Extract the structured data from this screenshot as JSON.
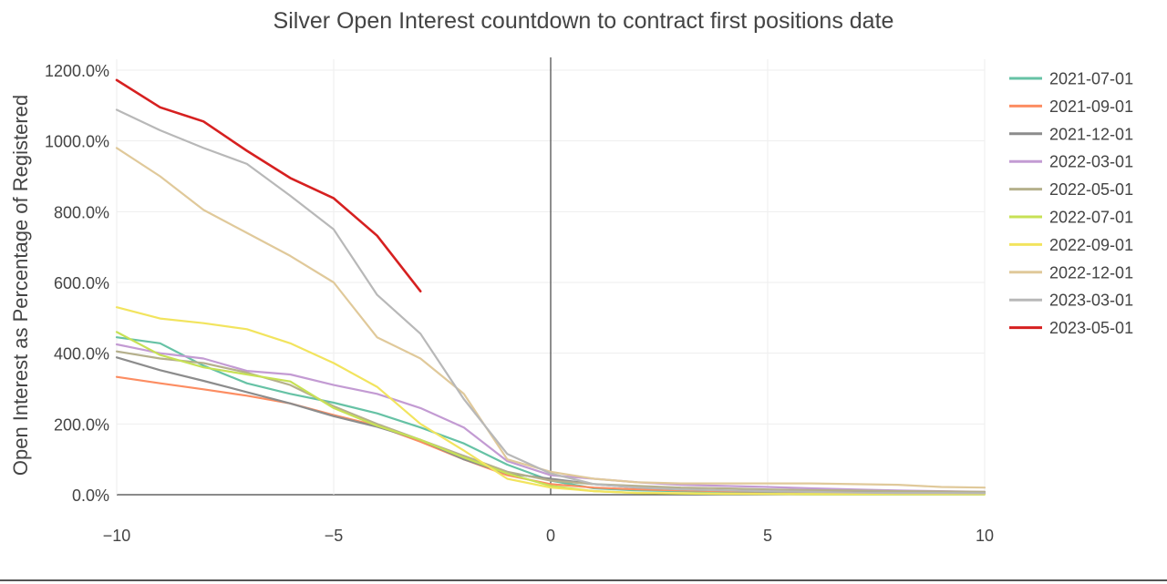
{
  "chart_data": {
    "type": "line",
    "title": "Silver Open Interest countdown to contract first positions date",
    "xlabel": "",
    "ylabel": "Open Interest as Percentage of Registered",
    "xlim": [
      -10,
      10
    ],
    "ylim": [
      0,
      1200
    ],
    "x_ticks": [
      -10,
      -5,
      0,
      5,
      10
    ],
    "x_tick_labels": [
      "−10",
      "−5",
      "0",
      "5",
      "10"
    ],
    "y_ticks": [
      0,
      200,
      400,
      600,
      800,
      1000,
      1200
    ],
    "y_tick_labels": [
      "0.0%",
      "200.0%",
      "400.0%",
      "600.0%",
      "800.0%",
      "1000.0%",
      "1200.0%"
    ],
    "grid": true,
    "zero_line_x": 0,
    "legend_position": "right",
    "series": [
      {
        "name": "2021-07-01",
        "color": "#66c2a5",
        "x": [
          -10,
          -9,
          -8,
          -7,
          -6,
          -5,
          -4,
          -3,
          -2,
          -1,
          0,
          1,
          2,
          3,
          4,
          5,
          6,
          7,
          8,
          9,
          10
        ],
        "y": [
          445,
          428,
          365,
          315,
          285,
          260,
          230,
          190,
          145,
          85,
          40,
          18,
          12,
          10,
          8,
          7,
          6,
          6,
          5,
          5,
          5
        ]
      },
      {
        "name": "2021-09-01",
        "color": "#fc8d62",
        "x": [
          -10,
          -9,
          -8,
          -7,
          -6,
          -5,
          -4,
          -3,
          -2,
          -1,
          0,
          1,
          2,
          3,
          4,
          5,
          6,
          7,
          8,
          9,
          10
        ],
        "y": [
          333,
          315,
          298,
          280,
          258,
          225,
          195,
          150,
          100,
          55,
          30,
          20,
          15,
          12,
          10,
          9,
          8,
          8,
          7,
          7,
          7
        ]
      },
      {
        "name": "2021-12-01",
        "color": "#8c8c8c",
        "x": [
          -10,
          -9,
          -8,
          -7,
          -6,
          -5,
          -4,
          -3,
          -2,
          -1,
          0,
          1,
          2,
          3,
          4,
          5,
          6,
          7,
          8,
          9,
          10
        ],
        "y": [
          388,
          352,
          322,
          290,
          258,
          222,
          192,
          155,
          100,
          60,
          45,
          30,
          20,
          15,
          12,
          10,
          8,
          7,
          6,
          5,
          5
        ]
      },
      {
        "name": "2022-03-01",
        "color": "#c39bd3",
        "x": [
          -10,
          -9,
          -8,
          -7,
          -6,
          -5,
          -4,
          -3,
          -2,
          -1,
          0,
          1,
          2,
          3,
          4,
          5,
          6,
          7,
          8,
          9,
          10
        ],
        "y": [
          425,
          400,
          385,
          350,
          340,
          310,
          285,
          245,
          190,
          95,
          55,
          45,
          35,
          28,
          25,
          22,
          18,
          15,
          12,
          10,
          8
        ]
      },
      {
        "name": "2022-05-01",
        "color": "#b5b08c",
        "x": [
          -10,
          -9,
          -8,
          -7,
          -6,
          -5,
          -4,
          -3,
          -2,
          -1,
          0,
          1,
          2,
          3,
          4,
          5,
          6,
          7,
          8,
          9,
          10
        ],
        "y": [
          405,
          385,
          372,
          345,
          310,
          250,
          200,
          155,
          110,
          65,
          40,
          30,
          25,
          20,
          18,
          15,
          13,
          12,
          10,
          9,
          8
        ]
      },
      {
        "name": "2022-07-01",
        "color": "#c7e155",
        "x": [
          -10,
          -9,
          -8,
          -7,
          -6,
          -5,
          -4,
          -3,
          -2,
          -1,
          0,
          1,
          2,
          3,
          4,
          5,
          6,
          7,
          8,
          9,
          10
        ],
        "y": [
          460,
          395,
          360,
          340,
          320,
          245,
          195,
          155,
          105,
          60,
          25,
          10,
          5,
          3,
          2,
          2,
          1,
          1,
          1,
          1,
          1
        ]
      },
      {
        "name": "2022-09-01",
        "color": "#f2e45e",
        "x": [
          -10,
          -9,
          -8,
          -7,
          -6,
          -5,
          -4,
          -3,
          -2,
          -1,
          0,
          1,
          2,
          3,
          4,
          5,
          6,
          7,
          8,
          9,
          10
        ],
        "y": [
          530,
          498,
          485,
          468,
          428,
          372,
          305,
          200,
          125,
          45,
          20,
          10,
          5,
          4,
          3,
          2,
          2,
          2,
          2,
          2,
          2
        ]
      },
      {
        "name": "2022-12-01",
        "color": "#e0c99a",
        "x": [
          -10,
          -9,
          -8,
          -7,
          -6,
          -5,
          -4,
          -3,
          -2,
          -1,
          0,
          1,
          2,
          3,
          4,
          5,
          6,
          7,
          8,
          9,
          10
        ],
        "y": [
          980,
          900,
          805,
          740,
          675,
          600,
          445,
          385,
          285,
          100,
          65,
          45,
          35,
          32,
          32,
          32,
          32,
          30,
          28,
          22,
          20
        ]
      },
      {
        "name": "2023-03-01",
        "color": "#b8b8b8",
        "x": [
          -10,
          -9,
          -8,
          -7,
          -6,
          -5,
          -4,
          -3,
          -2,
          -1,
          0,
          1,
          2,
          3,
          4,
          5,
          6,
          7,
          8,
          9,
          10
        ],
        "y": [
          1088,
          1030,
          980,
          935,
          845,
          750,
          565,
          455,
          270,
          115,
          60,
          30,
          20,
          15,
          12,
          10,
          8,
          6,
          5,
          5,
          4
        ]
      },
      {
        "name": "2023-05-01",
        "color": "#d62020",
        "x": [
          -10,
          -9,
          -8,
          -7,
          -6,
          -5,
          -4,
          -3
        ],
        "y": [
          1172,
          1095,
          1055,
          972,
          895,
          838,
          732,
          575
        ]
      }
    ]
  }
}
